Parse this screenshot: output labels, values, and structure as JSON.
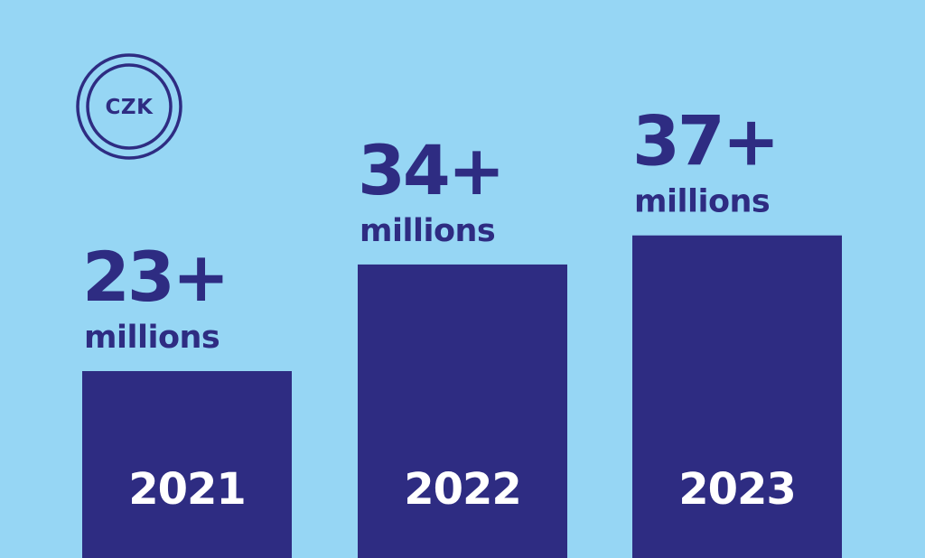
{
  "colors": {
    "background": "#96d6f4",
    "bar": "#2e2c82",
    "text": "#2e2c82",
    "bar_label": "#ffffff"
  },
  "badge": {
    "icon": "currency-circle-icon",
    "text": "CZK"
  },
  "chart_data": {
    "type": "bar",
    "categories": [
      "2021",
      "2022",
      "2023"
    ],
    "values": [
      23,
      34,
      37
    ],
    "value_labels": [
      "23+",
      "34+",
      "37+"
    ],
    "unit_label": "millions",
    "title": "",
    "xlabel": "",
    "ylabel": "",
    "grid": false,
    "legend": "none"
  }
}
